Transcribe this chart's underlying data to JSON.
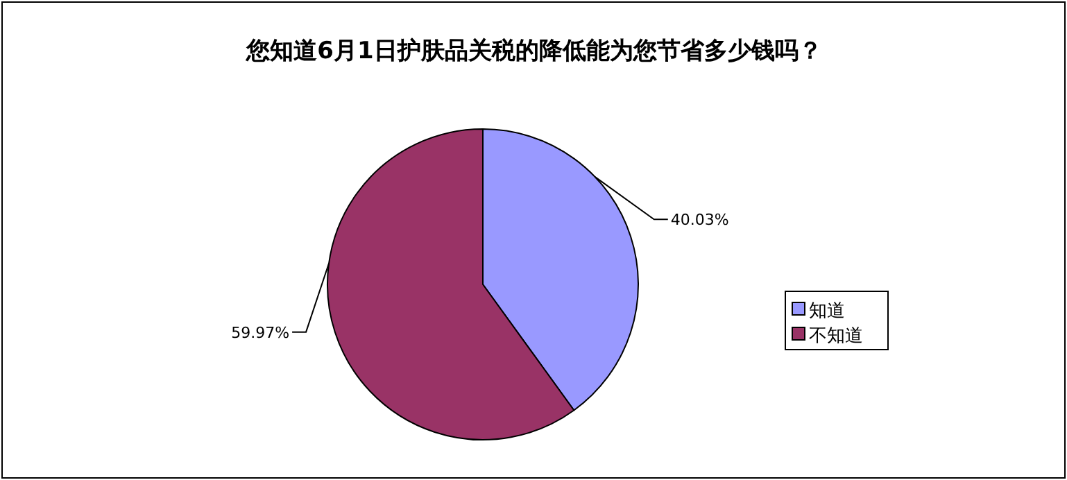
{
  "chart_data": {
    "type": "pie",
    "title": "您知道6月1日护肤品关税的降低能为您节省多少钱吗？",
    "categories": [
      "知道",
      "不知道"
    ],
    "values": [
      40.03,
      59.97
    ],
    "value_labels": [
      "40.03%",
      "59.97%"
    ],
    "colors": [
      "#9999ff",
      "#993366"
    ],
    "legend": "right"
  }
}
